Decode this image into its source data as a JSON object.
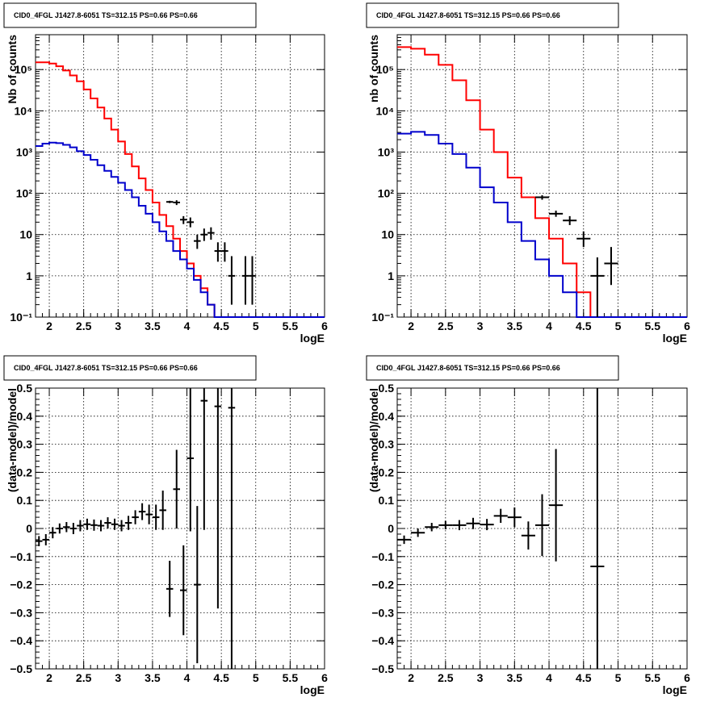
{
  "colors": {
    "data": "#000000",
    "total_model": "#ff0000",
    "component": "#0000cc",
    "grid": "#000000"
  },
  "chart_data": [
    {
      "type": "line",
      "title": "CID0_4FGL J1427.8-6051 TS=312.15 PS=0.66 PS=0.66",
      "xlabel": "logE",
      "ylabel": "Nb of counts",
      "xlim": [
        1.8,
        6.0
      ],
      "ylim": [
        0.1,
        700000
      ],
      "yscale": "log",
      "grid": true,
      "xticks": [
        2,
        2.5,
        3,
        3.5,
        4,
        4.5,
        5,
        5.5,
        6
      ],
      "xtick_labels": [
        "2",
        "2.5",
        "3",
        "3.5",
        "4",
        "4.5",
        "5",
        "5.5",
        "6"
      ],
      "yticks": [
        0.1,
        1,
        10,
        100,
        1000,
        10000,
        100000
      ],
      "ytick_labels": [
        "10⁻¹",
        "1",
        "10",
        "10²",
        "10³",
        "10⁴",
        "10⁵"
      ],
      "bin_edges": [
        1.8,
        1.9,
        2.0,
        2.1,
        2.2,
        2.3,
        2.4,
        2.5,
        2.6,
        2.7,
        2.8,
        2.9,
        3.0,
        3.1,
        3.2,
        3.3,
        3.4,
        3.5,
        3.6,
        3.7,
        3.8,
        3.9,
        4.0,
        4.1,
        4.2,
        4.3,
        4.4,
        4.5,
        4.6,
        4.7,
        4.8,
        4.9,
        5.0,
        5.1,
        5.2,
        5.3,
        5.4,
        5.5,
        5.6,
        5.7,
        5.8,
        5.9,
        6.0
      ],
      "series": [
        {
          "role": "total_model",
          "values": [
            150000,
            150000,
            140000,
            120000,
            95000,
            72000,
            52000,
            33000,
            20000,
            12000,
            6500,
            3500,
            1800,
            900,
            450,
            230,
            120,
            60,
            30,
            16,
            8,
            4,
            2,
            1,
            0.5,
            0.2,
            0.1,
            0.1,
            0.1,
            0.1,
            0.1,
            0.1,
            0.1,
            0.1,
            0.1,
            0.1,
            0.1,
            0.1,
            0.1,
            0.1,
            0.1,
            0.1
          ]
        },
        {
          "role": "component",
          "values": [
            1400,
            1600,
            1700,
            1650,
            1500,
            1300,
            1050,
            850,
            650,
            480,
            350,
            250,
            180,
            120,
            80,
            50,
            32,
            20,
            12,
            7,
            4,
            2.5,
            1.5,
            0.8,
            0.4,
            0.2,
            0.1,
            0.1,
            0.1,
            0.1,
            0.1,
            0.1,
            0.1,
            0.1,
            0.1,
            0.1,
            0.1,
            0.1,
            0.1,
            0.1,
            0.1,
            0.1
          ]
        },
        {
          "role": "data",
          "points": [
            [
              3.75,
              62,
              58,
              66
            ],
            [
              3.85,
              60,
              52,
              68
            ],
            [
              3.95,
              23,
              18,
              28
            ],
            [
              4.05,
              20,
              15,
              26
            ],
            [
              4.15,
              7,
              4.5,
              10
            ],
            [
              4.25,
              10,
              7,
              14
            ],
            [
              4.35,
              11,
              7.5,
              15
            ],
            [
              4.45,
              4,
              2.2,
              6.5
            ],
            [
              4.55,
              4,
              2.2,
              6.5
            ],
            [
              4.65,
              1,
              0.2,
              3
            ],
            [
              4.85,
              1,
              0.2,
              3
            ],
            [
              4.95,
              1,
              0.2,
              3
            ]
          ]
        }
      ]
    },
    {
      "type": "line",
      "title": "CID0_4FGL J1427.8-6051 TS=312.15 PS=0.66 PS=0.66",
      "xlabel": "logE",
      "ylabel": "nb of counts",
      "xlim": [
        1.8,
        6.0
      ],
      "ylim": [
        0.1,
        700000
      ],
      "yscale": "log",
      "grid": true,
      "xticks": [
        2,
        2.5,
        3,
        3.5,
        4,
        4.5,
        5,
        5.5,
        6
      ],
      "xtick_labels": [
        "2",
        "2.5",
        "3",
        "3.5",
        "4",
        "4.5",
        "5",
        "5.5",
        "6"
      ],
      "yticks": [
        0.1,
        1,
        10,
        100,
        1000,
        10000,
        100000
      ],
      "ytick_labels": [
        "10⁻¹",
        "1",
        "10",
        "10²",
        "10³",
        "10⁴",
        "10⁵"
      ],
      "bin_edges": [
        1.8,
        2.0,
        2.2,
        2.4,
        2.6,
        2.8,
        3.0,
        3.2,
        3.4,
        3.6,
        3.8,
        4.0,
        4.2,
        4.4,
        4.6,
        4.8,
        5.0,
        5.2,
        5.4,
        5.6,
        5.8,
        6.0
      ],
      "series": [
        {
          "role": "total_model",
          "values": [
            350000,
            320000,
            230000,
            130000,
            55000,
            18000,
            3500,
            1000,
            240,
            80,
            25,
            8,
            2,
            0.4,
            0.1,
            0.1,
            0.1,
            0.1,
            0.1,
            0.1,
            0.1
          ]
        },
        {
          "role": "component",
          "values": [
            2800,
            3100,
            2600,
            1600,
            900,
            420,
            140,
            60,
            20,
            7,
            2.5,
            1,
            0.4,
            0.1,
            0.1,
            0.1,
            0.1,
            0.1,
            0.1,
            0.1,
            0.1
          ]
        },
        {
          "role": "data",
          "points": [
            [
              3.9,
              80,
              70,
              90
            ],
            [
              4.1,
              32,
              27,
              38
            ],
            [
              4.3,
              22,
              17,
              28
            ],
            [
              4.5,
              8,
              5,
              12
            ],
            [
              4.7,
              1,
              0.1,
              2.8
            ],
            [
              4.9,
              2,
              0.6,
              5
            ]
          ]
        }
      ]
    },
    {
      "type": "scatter",
      "title": "CID0_4FGL J1427.8-6051 TS=312.15 PS=0.66 PS=0.66",
      "xlabel": "logE",
      "ylabel": "(data-model)/model",
      "xlim": [
        1.8,
        6.0
      ],
      "ylim": [
        -0.5,
        0.5
      ],
      "grid": true,
      "xticks": [
        2,
        2.5,
        3,
        3.5,
        4,
        4.5,
        5,
        5.5,
        6
      ],
      "xtick_labels": [
        "2",
        "2.5",
        "3",
        "3.5",
        "4",
        "4.5",
        "5",
        "5.5",
        "6"
      ],
      "yticks": [
        -0.5,
        -0.4,
        -0.3,
        -0.2,
        -0.1,
        0,
        0.1,
        0.2,
        0.3,
        0.4,
        0.5
      ],
      "ytick_labels": [
        "−0.5",
        "−0.4",
        "−0.3",
        "−0.2",
        "−0.1",
        "0",
        "0.1",
        "0.2",
        "0.3",
        "0.4",
        "0.5"
      ],
      "bin_half_width": 0.05,
      "points": [
        [
          1.85,
          -0.045,
          0.018
        ],
        [
          1.95,
          -0.04,
          0.02
        ],
        [
          2.05,
          -0.015,
          0.02
        ],
        [
          2.15,
          0.0,
          0.018
        ],
        [
          2.25,
          0.005,
          0.018
        ],
        [
          2.35,
          0.0,
          0.02
        ],
        [
          2.45,
          0.01,
          0.02
        ],
        [
          2.55,
          0.015,
          0.02
        ],
        [
          2.65,
          0.012,
          0.02
        ],
        [
          2.75,
          0.01,
          0.02
        ],
        [
          2.85,
          0.02,
          0.02
        ],
        [
          2.95,
          0.015,
          0.02
        ],
        [
          3.05,
          0.01,
          0.02
        ],
        [
          3.15,
          0.02,
          0.025
        ],
        [
          3.25,
          0.04,
          0.025
        ],
        [
          3.35,
          0.06,
          0.03
        ],
        [
          3.45,
          0.05,
          0.035
        ],
        [
          3.55,
          0.04,
          0.045
        ],
        [
          3.65,
          0.065,
          0.07
        ],
        [
          3.75,
          -0.215,
          0.1
        ],
        [
          3.85,
          0.14,
          0.14
        ],
        [
          3.95,
          -0.22,
          0.16
        ],
        [
          4.05,
          0.25,
          0.26
        ],
        [
          4.15,
          -0.2,
          0.28
        ],
        [
          4.25,
          0.455,
          0.46
        ],
        [
          4.45,
          0.435,
          0.72
        ],
        [
          4.65,
          0.43,
          0.95
        ]
      ]
    },
    {
      "type": "scatter",
      "title": "CID0_4FGL J1427.8-6051 TS=312.15 PS=0.66 PS=0.66",
      "xlabel": "logE",
      "ylabel": "(data-model)/model",
      "xlim": [
        1.8,
        6.0
      ],
      "ylim": [
        -0.5,
        0.5
      ],
      "grid": true,
      "xticks": [
        2,
        2.5,
        3,
        3.5,
        4,
        4.5,
        5,
        5.5,
        6
      ],
      "xtick_labels": [
        "2",
        "2.5",
        "3",
        "3.5",
        "4",
        "4.5",
        "5",
        "5.5",
        "6"
      ],
      "yticks": [
        -0.5,
        -0.4,
        -0.3,
        -0.2,
        -0.1,
        0,
        0.1,
        0.2,
        0.3,
        0.4,
        0.5
      ],
      "ytick_labels": [
        "−0.5",
        "−0.4",
        "−0.3",
        "−0.2",
        "−0.1",
        "0",
        "0.1",
        "0.2",
        "0.3",
        "0.4",
        "0.5"
      ],
      "bin_half_width": 0.1,
      "points": [
        [
          1.9,
          -0.04,
          0.015
        ],
        [
          2.1,
          -0.015,
          0.015
        ],
        [
          2.3,
          0.005,
          0.015
        ],
        [
          2.5,
          0.012,
          0.015
        ],
        [
          2.7,
          0.012,
          0.018
        ],
        [
          2.9,
          0.018,
          0.02
        ],
        [
          3.1,
          0.014,
          0.02
        ],
        [
          3.3,
          0.045,
          0.025
        ],
        [
          3.5,
          0.04,
          0.035
        ],
        [
          3.7,
          -0.025,
          0.05
        ],
        [
          3.9,
          0.012,
          0.11
        ],
        [
          4.1,
          0.083,
          0.2
        ],
        [
          4.7,
          -0.135,
          0.9
        ]
      ]
    }
  ]
}
